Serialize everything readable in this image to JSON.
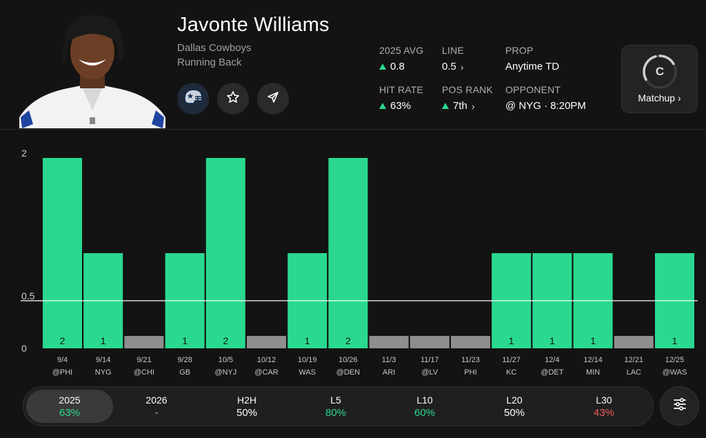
{
  "player": {
    "name": "Javonte Williams",
    "team": "Dallas Cowboys",
    "position": "Running Back"
  },
  "stats": {
    "avg_label": "2025 AVG",
    "avg_value": "0.8",
    "line_label": "LINE",
    "line_value": "0.5",
    "prop_label": "PROP",
    "prop_value": "Anytime TD",
    "hit_label": "HIT RATE",
    "hit_value": "63%",
    "rank_label": "POS RANK",
    "rank_value": "7th",
    "opp_label": "OPPONENT",
    "opp_value": "@ NYG · 8:20PM"
  },
  "matchup": {
    "grade": "C",
    "label": "Matchup ›"
  },
  "icons": {
    "team_logo": "helmet-icon",
    "favorite": "star-icon",
    "share": "send-icon",
    "settings": "sliders-icon"
  },
  "colors": {
    "hit": "#2ad98f",
    "miss": "#8e8e8e",
    "miss_text": "#f05a5a",
    "background": "#131313"
  },
  "chart_data": {
    "type": "bar",
    "title": "",
    "xlabel": "",
    "ylabel": "",
    "ylim": [
      0,
      2
    ],
    "yticks": [
      "0",
      "0.5",
      "2"
    ],
    "line_value": 0.5,
    "categories": [
      "9/4",
      "9/14",
      "9/21",
      "9/28",
      "10/5",
      "10/12",
      "10/19",
      "10/26",
      "11/3",
      "11/17",
      "11/23",
      "11/27",
      "12/4",
      "12/14",
      "12/21",
      "12/25"
    ],
    "opponents": [
      "@PHI",
      "NYG",
      "@CHI",
      "GB",
      "@NYJ",
      "@CAR",
      "WAS",
      "@DEN",
      "ARI",
      "@LV",
      "PHI",
      "KC",
      "@DET",
      "MIN",
      "LAC",
      "@WAS"
    ],
    "values": [
      2,
      1,
      0,
      1,
      2,
      0,
      1,
      2,
      0,
      0,
      0,
      1,
      1,
      1,
      0,
      1
    ]
  },
  "filters": [
    {
      "label": "2025",
      "value": "63%",
      "tone": "green",
      "active": true
    },
    {
      "label": "2026",
      "value": "-",
      "tone": "grey",
      "active": false
    },
    {
      "label": "H2H",
      "value": "50%",
      "tone": "white",
      "active": false
    },
    {
      "label": "L5",
      "value": "80%",
      "tone": "green",
      "active": false
    },
    {
      "label": "L10",
      "value": "60%",
      "tone": "green",
      "active": false
    },
    {
      "label": "L20",
      "value": "50%",
      "tone": "white",
      "active": false
    },
    {
      "label": "L30",
      "value": "43%",
      "tone": "red",
      "active": false
    }
  ]
}
